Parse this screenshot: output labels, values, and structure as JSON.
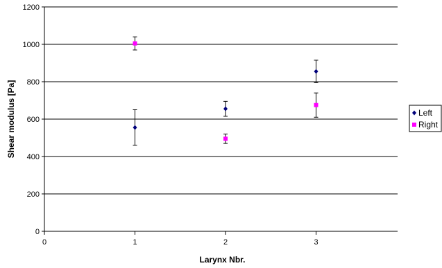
{
  "chart_data": {
    "type": "scatter",
    "xlabel": "Larynx Nbr.",
    "ylabel": "Shear modulus [Pa]",
    "xlim": [
      0,
      3.9
    ],
    "ylim": [
      0,
      1200
    ],
    "x_ticks": [
      0,
      1,
      2,
      3
    ],
    "y_ticks": [
      0,
      200,
      400,
      600,
      800,
      1000,
      1200
    ],
    "grid": "horizontal",
    "legend_position": "right",
    "series": [
      {
        "name": "Left",
        "color": "#00007a",
        "marker": "diamond",
        "points": [
          {
            "x": 1,
            "y": 555,
            "err": 95
          },
          {
            "x": 2,
            "y": 655,
            "err": 40
          },
          {
            "x": 3,
            "y": 855,
            "err": 60
          }
        ]
      },
      {
        "name": "Right",
        "color": "#ff00ff",
        "marker": "square",
        "points": [
          {
            "x": 1,
            "y": 1005,
            "err": 35
          },
          {
            "x": 2,
            "y": 495,
            "err": 25
          },
          {
            "x": 3,
            "y": 675,
            "err": 65
          }
        ]
      }
    ]
  }
}
